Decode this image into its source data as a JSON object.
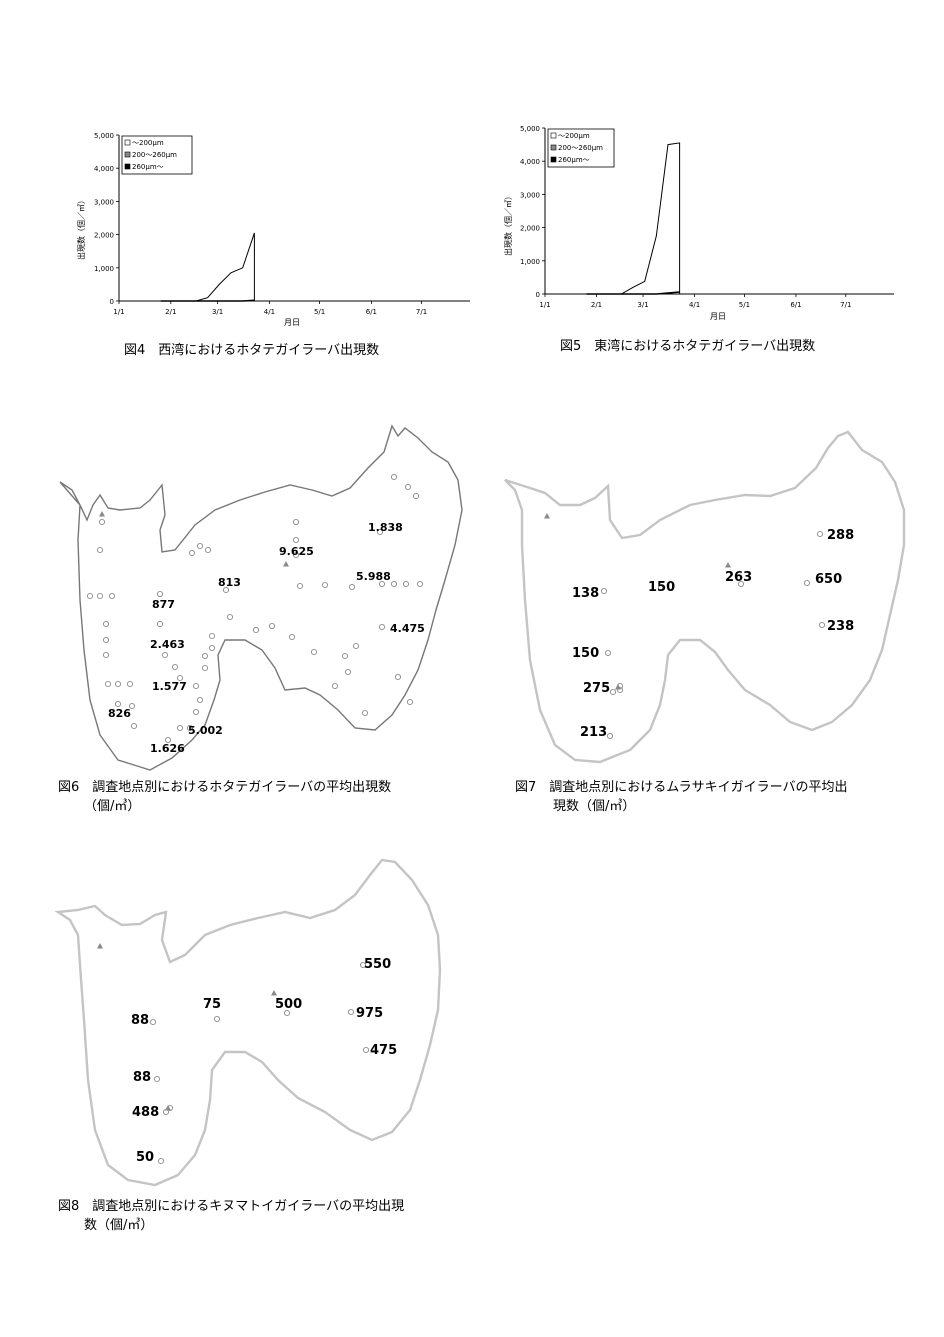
{
  "chart_data": [
    {
      "id": "fig4",
      "type": "area",
      "ylabel": "出現数（個／㎥）",
      "xlabel": "月日",
      "ylim": [
        0,
        5000
      ],
      "yticks": [
        "0",
        "1,000",
        "2,000",
        "3,000",
        "4,000",
        "5,000"
      ],
      "xticks": [
        "1/1",
        "2/1",
        "3/1",
        "4/1",
        "5/1",
        "6/1",
        "7/1"
      ],
      "legend": [
        "～200μm",
        "200～260μm",
        "260μm～"
      ],
      "legend_position": "top-left",
      "series": [
        {
          "name": "～200μm",
          "x": [
            25,
            32,
            39,
            46,
            53,
            60,
            67,
            74,
            81
          ],
          "values": [
            0,
            0,
            0,
            0,
            100,
            500,
            850,
            1000,
            2050
          ]
        },
        {
          "name": "200～260μm",
          "x": [
            25,
            32,
            39,
            46,
            53,
            60,
            67,
            74,
            81
          ],
          "values": [
            0,
            0,
            0,
            0,
            0,
            0,
            0,
            0,
            20
          ]
        }
      ],
      "caption": "図4　西湾におけるホタテガイラーバ出現数"
    },
    {
      "id": "fig5",
      "type": "area",
      "ylabel": "出現数（個／㎥）",
      "xlabel": "月日",
      "ylim": [
        0,
        5000
      ],
      "yticks": [
        "0",
        "1,000",
        "2,000",
        "3,000",
        "4,000",
        "5,000"
      ],
      "xticks": [
        "1/1",
        "2/1",
        "3/1",
        "4/1",
        "5/1",
        "6/1",
        "7/1"
      ],
      "legend": [
        "～200μm",
        "200～260μm",
        "260μm～"
      ],
      "legend_position": "top-left",
      "series": [
        {
          "name": "～200μm",
          "x": [
            25,
            32,
            39,
            46,
            53,
            60,
            67,
            74,
            81
          ],
          "values": [
            0,
            0,
            0,
            0,
            200,
            380,
            1750,
            4500,
            4550
          ]
        },
        {
          "name": "200～260μm",
          "x": [
            25,
            32,
            39,
            46,
            53,
            60,
            67,
            74,
            81
          ],
          "values": [
            0,
            0,
            0,
            0,
            0,
            0,
            0,
            30,
            60
          ]
        }
      ],
      "caption": "図5　東湾におけるホタテガイラーバ出現数"
    }
  ],
  "maps": [
    {
      "id": "fig6",
      "caption_line1": "図6　調査地点別におけるホタテガイラーバの平均出現数",
      "caption_line2": "（個/㎥）",
      "values": [
        "1.838",
        "9.625",
        "5.988",
        "813",
        "877",
        "4.475",
        "2.463",
        "1.577",
        "826",
        "5.002",
        "1.626"
      ]
    },
    {
      "id": "fig7",
      "caption_line1": "図7　調査地点別におけるムラサキイガイラーバの平均出",
      "caption_line2": "現数（個/㎥）",
      "values": [
        "288",
        "263",
        "150",
        "138",
        "650",
        "238",
        "150",
        "275",
        "213"
      ]
    },
    {
      "id": "fig8",
      "caption_line1": "図8　調査地点別におけるキヌマトイガイラーバの平均出現",
      "caption_line2": "数（個/㎥）",
      "values": [
        "550",
        "75",
        "500",
        "88",
        "975",
        "475",
        "88",
        "488",
        "50"
      ]
    }
  ],
  "colors": {
    "line": "#000000",
    "coast": "#777777",
    "coast_light": "#bdbdbd",
    "station": "#8a8a8a"
  }
}
